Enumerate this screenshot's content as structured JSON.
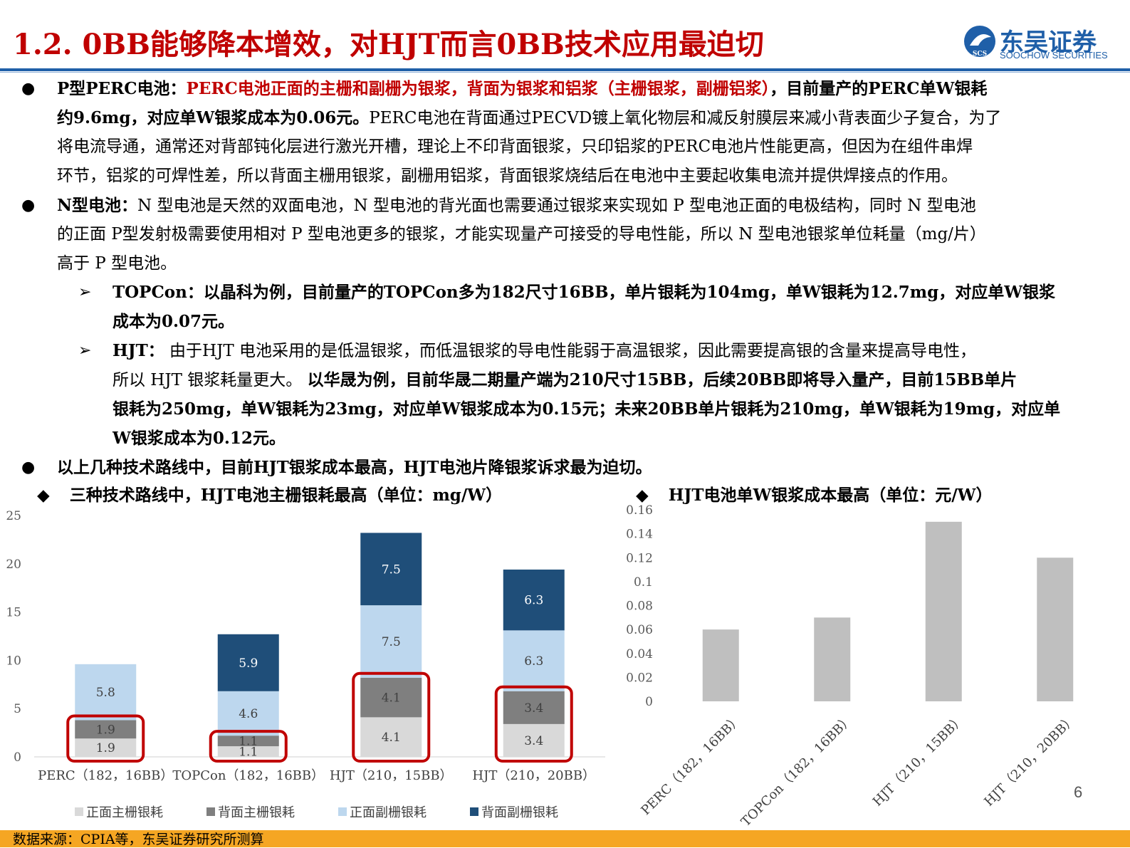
{
  "header": {
    "title": "1.2. 0BB能够降本增效，对HJT而言0BB技术应用最迫切",
    "logo_cn": "东吴证券",
    "logo_en": "SOOCHOW SECURITIES",
    "logo_mark": "SCS",
    "brand_color": "#1f5fa8",
    "title_color": "#c00000"
  },
  "body": {
    "p1": {
      "lead": "P型PERC电池：",
      "red": "PERC电池正面的主栅和副栅为银浆，背面为银浆和铝浆（主栅银浆，副栅铝浆）",
      "bold_a": "，目前量产的PERC单W银耗",
      "bold_b": "约9.6mg，对应单W银浆成本为0.06元。",
      "text_a": "PERC电池在背面通过PECVD镀上氧化物层和减反射膜层来减小背表面少子复合，为了",
      "line3": "将电流导通，通常还对背部钝化层进行激光开槽，理论上不印背面银浆，只印铝浆的PERC电池片性能更高，但因为在组件串焊",
      "line4": "环节，铝浆的可焊性差，所以背面主栅用银浆，副栅用铝浆，背面银浆烧结后在电池中主要起收集电流并提供焊接点的作用。"
    },
    "p2": {
      "lead": "N型电池：",
      "line1": "N 型电池是天然的双面电池，N 型电池的背光面也需要通过银浆来实现如 P 型电池正面的电极结构，同时 N 型电池",
      "line2": "的正面 P型发射极需要使用相对 P 型电池更多的银浆，才能实现量产可接受的导电性能，所以 N 型电池银浆单位耗量（mg/片）",
      "line3": "高于 P 型电池。"
    },
    "s1": {
      "line1": "TOPCon：以晶科为例，目前量产的TOPCon多为182尺寸16BB，单片银耗为104mg，单W银耗为12.7mg，对应单W银浆",
      "line2": "成本为0.07元。"
    },
    "s2": {
      "lead": "HJT：",
      "line1": " 由于HJT 电池采用的是低温银浆，而低温银浆的导电性能弱于高温银浆，因此需要提高银的含量来提高导电性，",
      "line2a": "所以 HJT 银浆耗量更大。 ",
      "line2b": "以华晟为例，目前华晟二期量产端为210尺寸15BB，后续20BB即将导入量产，目前15BB单片",
      "line3": "银耗为250mg，单W银耗为23mg，对应单W银浆成本为0.15元；未来20BB单片银耗为210mg，单W银耗为19mg，对应单",
      "line4": "W银浆成本为0.12元。"
    },
    "p3": "以上几种技术路线中，目前HJT银浆成本最高，HJT电池片降银浆诉求最为迫切。",
    "bullet_glyph": "●",
    "arrow_glyph": "➢",
    "diamond_glyph": "◆"
  },
  "chart_left_title": "三种技术路线中，HJT电池主栅银耗最高（单位：mg/W）",
  "chart_right_title": "HJT电池单W银浆成本最高（单位：元/W）",
  "chart_data": [
    {
      "type": "bar",
      "stacked": true,
      "title": "三种技术路线中，HJT电池主栅银耗最高（单位：mg/W）",
      "categories": [
        "PERC（182，16BB）",
        "TOPCon（182，16BB）",
        "HJT（210，15BB）",
        "HJT（210，20BB）"
      ],
      "series": [
        {
          "name": "正面主栅银耗",
          "color": "#d9d9d9",
          "values": [
            1.9,
            1.1,
            4.1,
            3.4
          ]
        },
        {
          "name": "背面主栅银耗",
          "color": "#7f7f7f",
          "values": [
            1.9,
            1.1,
            4.1,
            3.4
          ]
        },
        {
          "name": "正面副栅银耗",
          "color": "#bdd7ee",
          "values": [
            5.8,
            4.6,
            7.5,
            6.3
          ]
        },
        {
          "name": "背面副栅银耗",
          "color": "#1f4e79",
          "values": [
            0,
            5.9,
            7.5,
            6.3
          ]
        }
      ],
      "data_labels": [
        [
          "1.9",
          "1.9",
          "5.8",
          ""
        ],
        [
          "1.1",
          "1.1",
          "4.6",
          "5.9"
        ],
        [
          "4.1",
          "4.1",
          "7.5",
          "7.5"
        ],
        [
          "3.4",
          "3.4",
          "6.3",
          "6.3"
        ]
      ],
      "yticks": [
        "0",
        "5",
        "10",
        "15",
        "20",
        "25"
      ],
      "ylim": [
        0,
        25
      ],
      "highlight_color": "#c00000",
      "legend": "bottom"
    },
    {
      "type": "bar",
      "title": "HJT电池单W银浆成本最高（单位：元/W）",
      "categories": [
        "PERC（182，16BB）",
        "TOPCon（182，16BB）",
        "HJT（210，15BB）",
        "HJT（210，20BB）"
      ],
      "values": [
        0.06,
        0.07,
        0.15,
        0.12
      ],
      "color": "#bfbfbf",
      "yticks": [
        "0",
        "0.02",
        "0.04",
        "0.06",
        "0.08",
        "0.1",
        "0.12",
        "0.14",
        "0.16"
      ],
      "ylim": [
        0,
        0.16
      ]
    }
  ],
  "footer": {
    "source": "数据来源：CPIA等，东吴证券研究所测算",
    "page": "6",
    "bar_color": "#f5a623"
  }
}
